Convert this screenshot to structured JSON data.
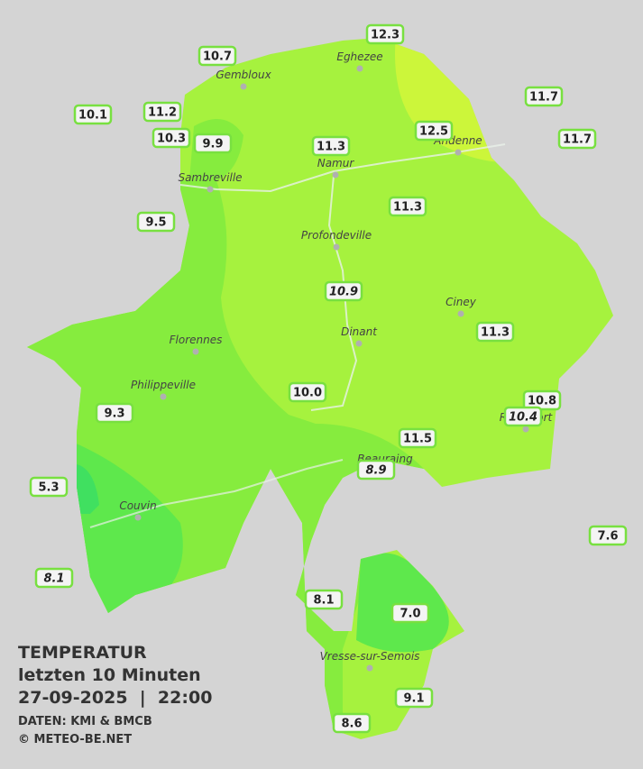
{
  "legend": {
    "title": "TEMPERATUR",
    "subtitle": "letzten 10 Minuten",
    "datetime": "27-09-2025  |  22:00",
    "source": "DATEN: KMI & BMCB",
    "copyright": "© METEO-BE.NET"
  },
  "cities": [
    "Eghezee",
    "Gembloux",
    "Sambreville",
    "Namur",
    "Andenne",
    "Profondeville",
    "Ciney",
    "Dinant",
    "Florennes",
    "Philippeville",
    "Rochefort",
    "Beauraing",
    "Couvin",
    "Vresse-sur-Semois"
  ],
  "stations": [
    {
      "label": "12.3",
      "italic": false
    },
    {
      "label": "10.7",
      "italic": false
    },
    {
      "label": "11.7",
      "italic": false
    },
    {
      "label": "10.1",
      "italic": false
    },
    {
      "label": "11.2",
      "italic": false
    },
    {
      "label": "10.3",
      "italic": false
    },
    {
      "label": "9.9",
      "italic": false
    },
    {
      "label": "11.3",
      "italic": false
    },
    {
      "label": "12.5",
      "italic": false
    },
    {
      "label": "11.7",
      "italic": false
    },
    {
      "label": "9.5",
      "italic": false
    },
    {
      "label": "11.3",
      "italic": false
    },
    {
      "label": "10.9",
      "italic": true
    },
    {
      "label": "11.3",
      "italic": false
    },
    {
      "label": "10.0",
      "italic": false
    },
    {
      "label": "9.3",
      "italic": false
    },
    {
      "label": "10.8",
      "italic": false
    },
    {
      "label": "10.4",
      "italic": true
    },
    {
      "label": "11.5",
      "italic": false
    },
    {
      "label": "8.9",
      "italic": true
    },
    {
      "label": "5.3",
      "italic": false
    },
    {
      "label": "7.6",
      "italic": false
    },
    {
      "label": "8.1",
      "italic": true
    },
    {
      "label": "8.1",
      "italic": false
    },
    {
      "label": "7.0",
      "italic": false
    },
    {
      "label": "9.1",
      "italic": false
    },
    {
      "label": "8.6",
      "italic": false
    }
  ]
}
